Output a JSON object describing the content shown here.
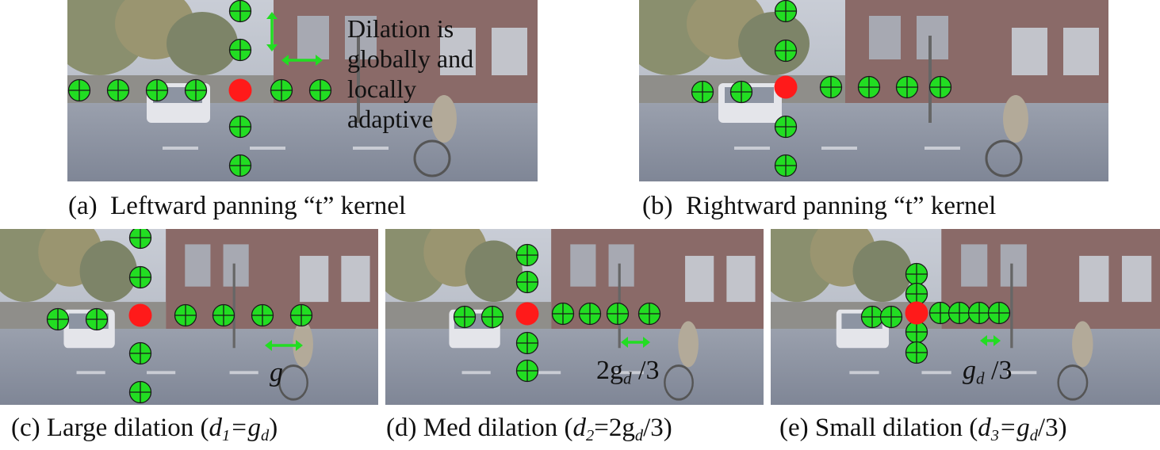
{
  "panels": [
    {
      "id": "a",
      "caption_label": "(a)",
      "caption_text": "Leftward panning “t” kernel"
    },
    {
      "id": "b",
      "caption_label": "(b)",
      "caption_text": "Rightward panning “t” kernel"
    },
    {
      "id": "c",
      "caption_prefix": "(c) Large dilation (",
      "caption_var": "d",
      "caption_sub": "1",
      "caption_eq": "=g",
      "caption_sub2": "d",
      "caption_suffix": ")"
    },
    {
      "id": "d",
      "caption_prefix": "(d) Med dilation (",
      "caption_var": "d",
      "caption_sub": "2",
      "caption_eq": "=2g",
      "caption_sub2": "d",
      "caption_suffix": "/3)"
    },
    {
      "id": "e",
      "caption_prefix": "(e) Small dilation (",
      "caption_var": "d",
      "caption_sub": "3",
      "caption_eq": "=g",
      "caption_sub2": "d",
      "caption_suffix": "/3)"
    }
  ],
  "note_lines": [
    "Dilation is",
    "globally and",
    "locally",
    "adaptive"
  ],
  "dim_labels": {
    "c": {
      "main": "g",
      "sub": ""
    },
    "d": {
      "prefix": "2g",
      "sub": "d",
      "suffix": " /3"
    },
    "e": {
      "prefix": "g",
      "sub": "d",
      "suffix": " /3"
    }
  },
  "colors": {
    "kernel_point": "#22dd22",
    "center_point": "#ff1a1a",
    "arrow": "#22dd22",
    "outline": "#1a1a1a"
  }
}
